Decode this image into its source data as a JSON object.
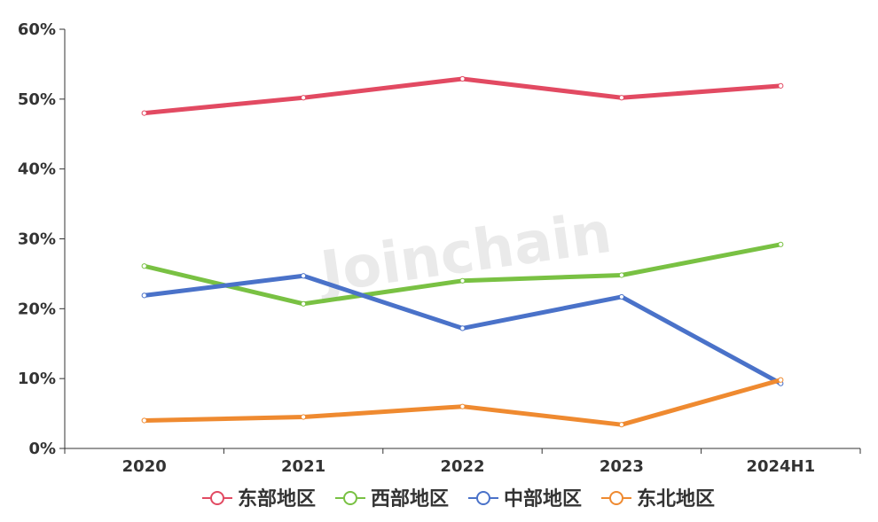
{
  "chart_data": {
    "type": "line",
    "title": "",
    "xlabel": "",
    "ylabel": "",
    "categories": [
      "2020",
      "2021",
      "2022",
      "2023",
      "2024H1"
    ],
    "y_ticks": [
      "0%",
      "10%",
      "20%",
      "30%",
      "40%",
      "50%",
      "60%"
    ],
    "ylim": [
      0,
      60
    ],
    "y_unit": "%",
    "grid": false,
    "legend_position": "bottom",
    "watermark": "Joinchain",
    "series": [
      {
        "name": "东部地区",
        "color": "#e24a62",
        "values": [
          48,
          50.2,
          52.9,
          50.2,
          51.9
        ]
      },
      {
        "name": "西部地区",
        "color": "#79c143",
        "values": [
          26.1,
          20.7,
          24.0,
          24.8,
          29.2
        ]
      },
      {
        "name": "中部地区",
        "color": "#4a72c9",
        "values": [
          21.9,
          24.7,
          17.2,
          21.7,
          9.3
        ]
      },
      {
        "name": "东北地区",
        "color": "#ef8a30",
        "values": [
          4.0,
          4.5,
          6.0,
          3.4,
          9.8
        ]
      }
    ]
  }
}
